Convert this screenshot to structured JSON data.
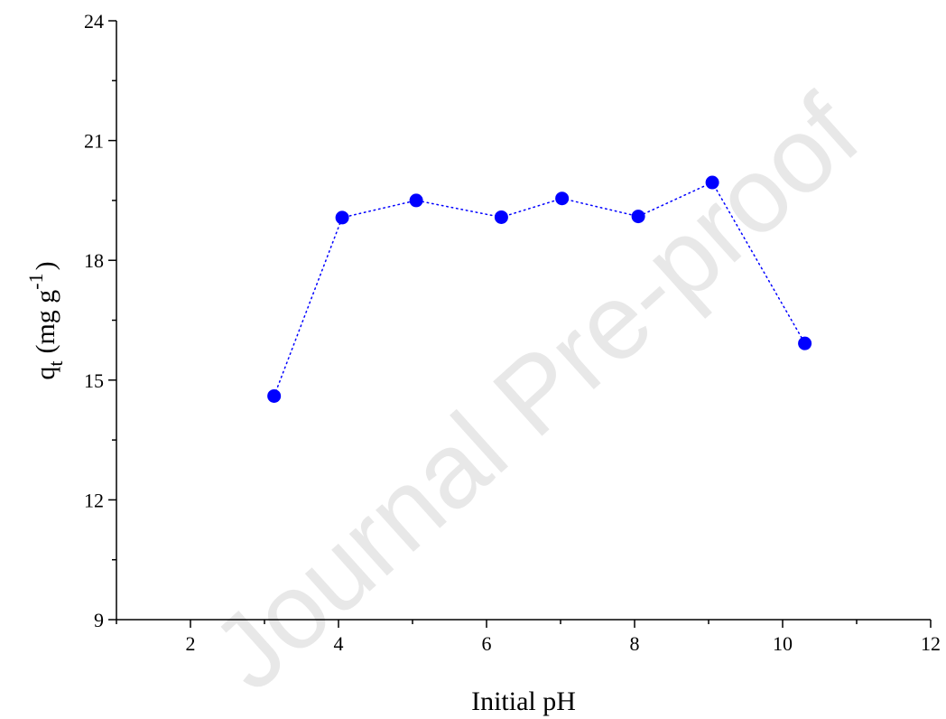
{
  "watermark": "Journal Pre-proof",
  "chart_data": {
    "type": "line",
    "title": "",
    "xlabel": "Initial pH",
    "ylabel": {
      "main": "q",
      "sub": "t",
      "unit": "(mg g",
      "sup": "-1",
      "close": ")"
    },
    "xlim": [
      1,
      12
    ],
    "ylim": [
      9,
      24
    ],
    "xticks": [
      2,
      4,
      6,
      8,
      10,
      12
    ],
    "yticks": [
      9,
      12,
      15,
      18,
      21,
      24
    ],
    "grid": false,
    "legend": "none",
    "line_style": "dotted",
    "marker": "circle",
    "color": "#0000ff",
    "series": [
      {
        "x": [
          3.13,
          4.05,
          5.05,
          6.2,
          7.02,
          8.05,
          9.05,
          10.3
        ],
        "y": [
          14.6,
          19.07,
          19.5,
          19.08,
          19.55,
          19.1,
          19.95,
          15.92
        ]
      }
    ]
  }
}
